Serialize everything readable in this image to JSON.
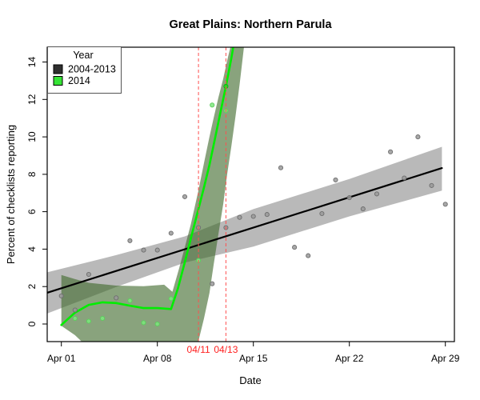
{
  "chart_data": {
    "type": "line",
    "title": "Great Plains: Northern Parula",
    "xlabel": "Date",
    "ylabel": "Percent of checklists reporting",
    "x_unit": "day of April",
    "x_domain": [
      -0.03,
      29.66
    ],
    "y_domain": [
      -0.94,
      14.79
    ],
    "grid": false,
    "x_ticks": [
      {
        "day": 1,
        "label": "Apr 01"
      },
      {
        "day": 8,
        "label": "Apr 08"
      },
      {
        "day": 15,
        "label": "Apr 15"
      },
      {
        "day": 22,
        "label": "Apr 22"
      },
      {
        "day": 29,
        "label": "Apr 29"
      }
    ],
    "y_ticks": [
      0,
      2,
      4,
      6,
      8,
      10,
      12,
      14
    ],
    "legend": {
      "title": "Year",
      "position": "top-left",
      "entries": [
        {
          "label": "2004-2013",
          "swatch": "#2f2f2f"
        },
        {
          "label": "2014",
          "swatch": "#36e436"
        }
      ]
    },
    "series": [
      {
        "name": "2004-2013 confidence band",
        "type": "band",
        "color": "rgba(128,128,128,0.55)",
        "points": [
          [
            -0.03,
            0.56,
            2.76
          ],
          [
            5,
            1.98,
            3.68
          ],
          [
            10,
            3.28,
            4.68
          ],
          [
            15,
            4.14,
            6.14
          ],
          [
            22,
            5.75,
            7.75
          ],
          [
            28.75,
            7.13,
            9.47
          ]
        ]
      },
      {
        "name": "2014 confidence band",
        "type": "band",
        "color": "rgba(64,106,45,0.62)",
        "points": [
          [
            1,
            -0.1,
            2.62
          ],
          [
            2,
            -0.6,
            2.4
          ],
          [
            3,
            -1.3,
            2.2
          ],
          [
            5,
            -1.3,
            2.05
          ],
          [
            7,
            -1.3,
            2.02
          ],
          [
            8.5,
            -1.3,
            2.1
          ],
          [
            9.1,
            -1.3,
            1.72
          ],
          [
            9.6,
            -1.3,
            3.0
          ],
          [
            10,
            -1.3,
            4.1
          ],
          [
            10.45,
            -1.3,
            5.35
          ],
          [
            11,
            -0.9,
            7.15
          ],
          [
            11.4,
            0.3,
            8.6
          ],
          [
            11.8,
            1.65,
            10.0
          ],
          [
            12.1,
            3.15,
            11.0
          ],
          [
            12.45,
            4.8,
            12.1
          ],
          [
            12.8,
            6.4,
            13.1
          ],
          [
            13.1,
            8.05,
            14.1
          ],
          [
            13.4,
            9.5,
            15.0
          ],
          [
            13.7,
            11.1,
            15.8
          ],
          [
            14.0,
            12.8,
            16.5
          ],
          [
            14.35,
            15.0,
            17.2
          ]
        ]
      },
      {
        "name": "2004-2013 trend",
        "type": "line",
        "color": "#000000",
        "width": 2.2,
        "points": [
          [
            -0.03,
            1.67
          ],
          [
            28.75,
            8.33
          ]
        ]
      },
      {
        "name": "2014 smooth",
        "type": "line",
        "color": "#00ee00",
        "width": 2.6,
        "points": [
          [
            1,
            -0.05
          ],
          [
            2,
            0.61
          ],
          [
            3,
            1.02
          ],
          [
            4,
            1.16
          ],
          [
            5,
            1.12
          ],
          [
            6,
            0.98
          ],
          [
            7,
            0.85
          ],
          [
            8,
            0.85
          ],
          [
            9,
            0.8
          ],
          [
            9.5,
            1.9
          ],
          [
            10,
            3.3
          ],
          [
            10.45,
            4.6
          ],
          [
            11,
            6.15
          ],
          [
            11.4,
            7.3
          ],
          [
            11.8,
            8.5
          ],
          [
            12.2,
            9.9
          ],
          [
            12.6,
            11.3
          ],
          [
            13,
            12.7
          ],
          [
            13.4,
            14.2
          ],
          [
            13.65,
            15.3
          ]
        ]
      },
      {
        "name": "2004-2013 daily points",
        "type": "scatter",
        "color": "#999999",
        "stroke": "#6e6e6e",
        "points": [
          [
            1,
            1.5
          ],
          [
            2,
            0.75
          ],
          [
            3,
            2.65
          ],
          [
            5,
            1.4
          ],
          [
            6,
            4.45
          ],
          [
            7,
            3.95
          ],
          [
            8,
            3.95
          ],
          [
            9,
            4.85
          ],
          [
            10,
            6.8
          ],
          [
            11,
            5.15
          ],
          [
            12,
            2.15
          ],
          [
            13,
            5.15
          ],
          [
            14,
            5.7
          ],
          [
            15,
            5.75
          ],
          [
            16,
            5.85
          ],
          [
            17,
            8.35
          ],
          [
            18,
            4.1
          ],
          [
            19,
            3.65
          ],
          [
            20,
            5.9
          ],
          [
            21,
            7.7
          ],
          [
            22,
            6.75
          ],
          [
            23,
            6.15
          ],
          [
            24,
            6.95
          ],
          [
            25,
            9.2
          ],
          [
            26,
            7.8
          ],
          [
            27,
            10.0
          ],
          [
            28,
            7.4
          ],
          [
            29,
            6.4
          ]
        ]
      },
      {
        "name": "2014 observed points",
        "type": "scatter",
        "color": "#7de87d",
        "stroke": "#5ccc5c",
        "points": [
          [
            2,
            0.3
          ],
          [
            3,
            0.15
          ],
          [
            4,
            0.3
          ],
          [
            6,
            1.25
          ],
          [
            7,
            0.07
          ],
          [
            8,
            0.0
          ],
          [
            9,
            1.35
          ],
          [
            11,
            3.4
          ],
          [
            12,
            11.7
          ],
          [
            13,
            11.4
          ]
        ]
      },
      {
        "name": "2014 highlight point",
        "type": "scatter",
        "color": "#1ddd1d",
        "stroke": "#0fae0f",
        "points": [
          [
            13,
            12.7
          ]
        ]
      }
    ],
    "annotations": {
      "vlines": [
        {
          "day": 11,
          "label": "04/11"
        },
        {
          "day": 13,
          "label": "04/13"
        }
      ],
      "line_style": "dashed",
      "line_color": "#ff5050",
      "label_color": "#ff2020"
    }
  }
}
